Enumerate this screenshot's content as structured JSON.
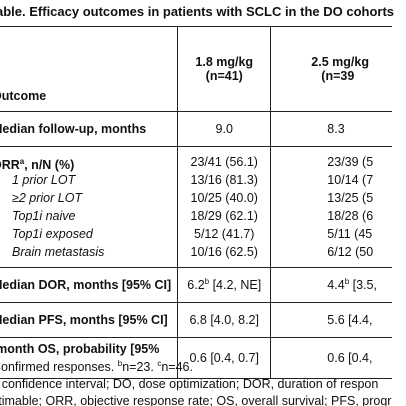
{
  "title": "able. Efficacy outcomes in patients with SCLC in the DO cohorts",
  "header": {
    "outcome": "Outcome",
    "col1_dose": "1.8 mg/kg",
    "col1_n": "(n=41)",
    "col2_dose": "2.5 mg/kg",
    "col2_n": "(n=39"
  },
  "rows": {
    "followup": {
      "label": "Median follow-up, months",
      "v1": "9.0",
      "v2": "8.3"
    },
    "orr": {
      "label": "ORR",
      "label_sup": "a",
      "label_rest": ", n/N (%)",
      "v1": "23/41 (56.1)",
      "v2": "23/39 (5",
      "subs": [
        {
          "label": "1 prior LOT",
          "v1": "13/16 (81.3)",
          "v2": "10/14 (7"
        },
        {
          "label": "≥2 prior LOT",
          "v1": "10/25 (40.0)",
          "v2": "13/25 (5"
        },
        {
          "label": "Top1i naive",
          "v1": "18/29 (62.1)",
          "v2": "18/28 (6"
        },
        {
          "label": "Top1i exposed",
          "v1": "5/12 (41.7)",
          "v2": "5/11 (45"
        },
        {
          "label": "Brain metastasis",
          "v1": "10/16 (62.5)",
          "v2": "6/12 (50"
        }
      ]
    },
    "dor": {
      "label": "Median DOR, months [95% CI]",
      "v1_main": "6.2",
      "v1_sup": "b",
      "v1_rest": " [4.2, NE]",
      "v2_main": "4.4",
      "v2_sup": "b",
      "v2_rest": " [3.5,"
    },
    "pfs": {
      "label": "Median PFS, months [95% CI]",
      "v1": "6.8 [4.0, 8.2]",
      "v2": "5.6 [4.4,"
    },
    "os": {
      "label_line1": "-month OS, probability [95%",
      "label_line2": "l]",
      "v1": "0.6 [0.4, 0.7]",
      "v2": "0.6 [0.4,"
    }
  },
  "footnotes": {
    "line1_a": "Confirmed responses. ",
    "line1_b_sup": "b",
    "line1_b": "n=23. ",
    "line1_c_sup": "c",
    "line1_c": "n=46.",
    "line2": "l, confidence interval; DO, dose optimization; DOR, duration of respon",
    "line3": "stimable; ORR, objective response rate; OS, overall survival; PFS, progr"
  }
}
